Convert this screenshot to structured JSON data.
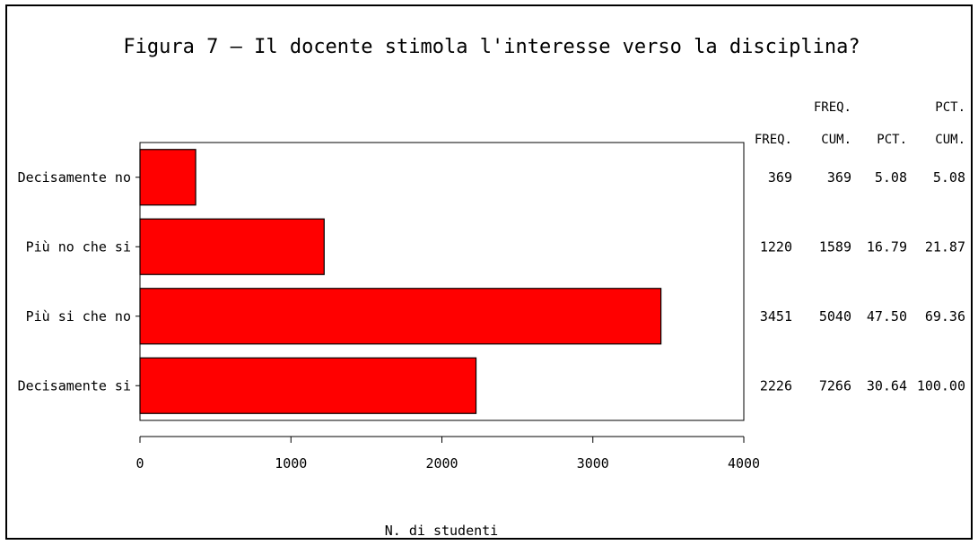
{
  "chart_data": {
    "type": "bar",
    "orientation": "horizontal",
    "title": "Figura 7 – Il docente stimola l'interesse verso la disciplina?",
    "xlabel": "N. di studenti",
    "ylabel": "",
    "xlim": [
      0,
      4000
    ],
    "xticks": [
      0,
      1000,
      2000,
      3000,
      4000
    ],
    "categories": [
      "Decisamente no",
      "Più no che si",
      "Più si che no",
      "Decisamente si"
    ],
    "values": [
      369,
      1220,
      3451,
      2226
    ],
    "bar_color": "#ff0000",
    "grid": false,
    "legend": "none",
    "table": {
      "headers": [
        {
          "line1": "",
          "line2": "FREQ."
        },
        {
          "line1": "FREQ.",
          "line2": "CUM."
        },
        {
          "line1": "",
          "line2": "PCT."
        },
        {
          "line1": "PCT.",
          "line2": "CUM."
        }
      ],
      "rows": [
        [
          "369",
          "369",
          "5.08",
          "5.08"
        ],
        [
          "1220",
          "1589",
          "16.79",
          "21.87"
        ],
        [
          "3451",
          "5040",
          "47.50",
          "69.36"
        ],
        [
          "2226",
          "7266",
          "30.64",
          "100.00"
        ]
      ]
    }
  }
}
